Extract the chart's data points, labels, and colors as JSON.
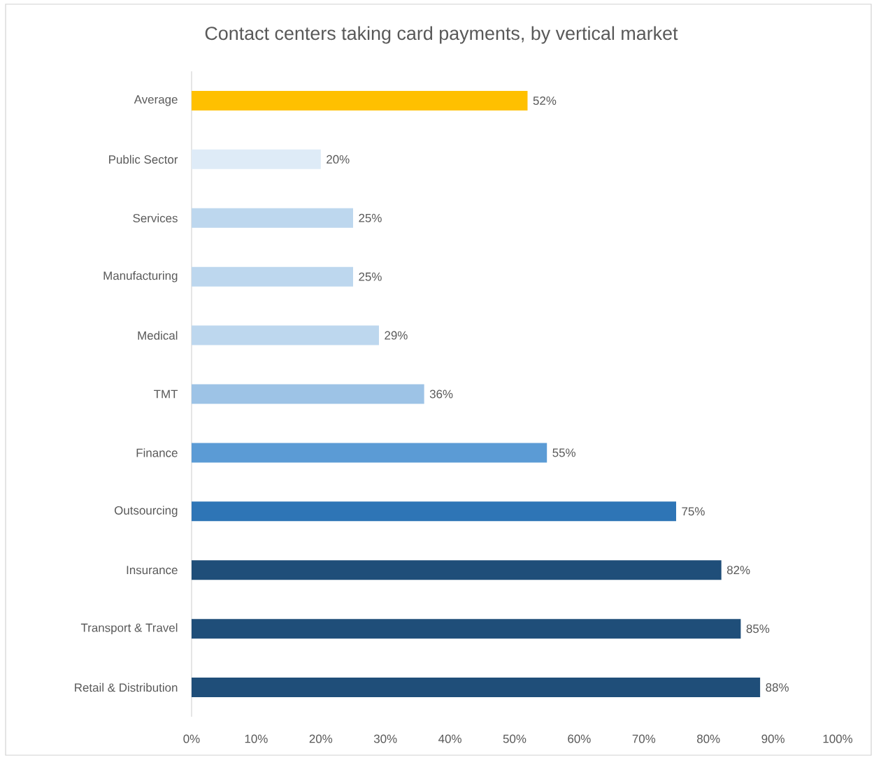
{
  "chart_data": {
    "type": "bar",
    "orientation": "horizontal",
    "title": "Contact centers taking card payments, by vertical market",
    "categories": [
      "Average",
      "Public Sector",
      "Services",
      "Manufacturing",
      "Medical",
      "TMT",
      "Finance",
      "Outsourcing",
      "Insurance",
      "Transport & Travel",
      "Retail & Distribution"
    ],
    "values": [
      52,
      20,
      25,
      25,
      29,
      36,
      55,
      75,
      82,
      85,
      88
    ],
    "value_labels": [
      "52%",
      "20%",
      "25%",
      "25%",
      "29%",
      "36%",
      "55%",
      "75%",
      "82%",
      "85%",
      "88%"
    ],
    "colors": [
      "#ffc000",
      "#deebf7",
      "#bdd7ee",
      "#bdd7ee",
      "#bdd7ee",
      "#9dc3e6",
      "#5b9bd5",
      "#2e75b6",
      "#1f4e79",
      "#1f4e79",
      "#1f4e79"
    ],
    "xlim": [
      0,
      100
    ],
    "xticks": [
      {
        "value": 0,
        "label": "0%"
      },
      {
        "value": 10,
        "label": "10%"
      },
      {
        "value": 20,
        "label": "20%"
      },
      {
        "value": 30,
        "label": "30%"
      },
      {
        "value": 40,
        "label": "40%"
      },
      {
        "value": 50,
        "label": "50%"
      },
      {
        "value": 60,
        "label": "60%"
      },
      {
        "value": 70,
        "label": "70%"
      },
      {
        "value": 80,
        "label": "80%"
      },
      {
        "value": 90,
        "label": "90%"
      },
      {
        "value": 100,
        "label": "100%"
      }
    ]
  }
}
